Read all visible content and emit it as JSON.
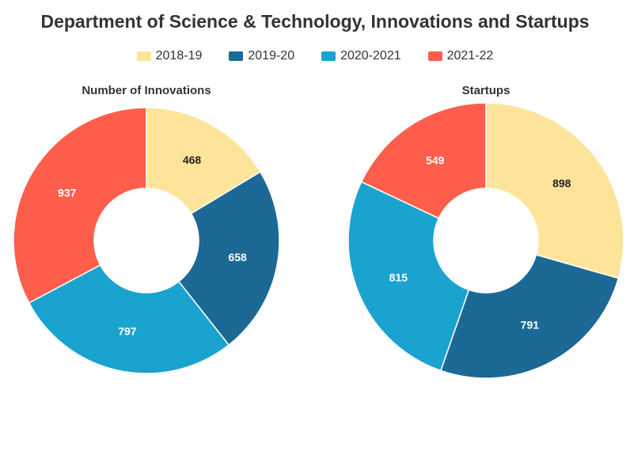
{
  "title": "Department of Science & Technology, Innovations and Startups",
  "chart_data": [
    {
      "type": "pie",
      "variant": "donut",
      "title": "Number of Innovations",
      "categories": [
        "2018-19",
        "2019-20",
        "2020-2021",
        "2021-22"
      ],
      "values": [
        468,
        658,
        797,
        937
      ]
    },
    {
      "type": "pie",
      "variant": "donut",
      "title": "Startups",
      "categories": [
        "2018-19",
        "2019-20",
        "2020-2021",
        "2021-22"
      ],
      "values": [
        898,
        791,
        815,
        549
      ]
    }
  ],
  "legend": [
    {
      "label": "2018-19",
      "color": "#fee49b"
    },
    {
      "label": "2019-20",
      "color": "#1d6996"
    },
    {
      "label": "2020-2021",
      "color": "#1ba3cf"
    },
    {
      "label": "2021-22",
      "color": "#ff5e4d"
    }
  ],
  "label_colors": [
    "#222222",
    "#ffffff",
    "#ffffff",
    "#ffffff"
  ]
}
